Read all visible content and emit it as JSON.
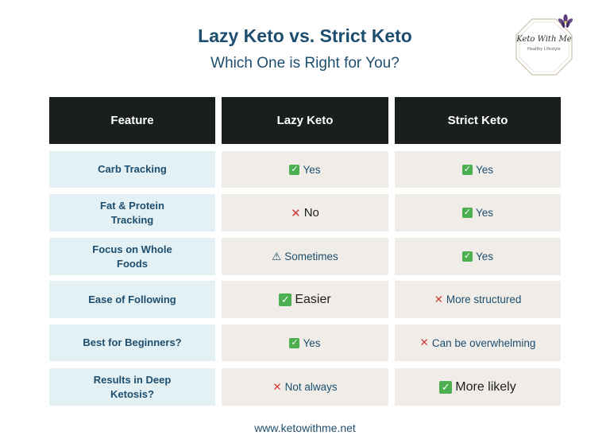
{
  "header": {
    "title": "Lazy Keto vs. Strict Keto",
    "subtitle": "Which One is Right for You?"
  },
  "logo": {
    "name": "Keto With Me",
    "tagline": "Healthy Lifestyle",
    "icon": "flower-icon"
  },
  "table": {
    "columns": [
      "Feature",
      "Lazy Keto",
      "Strict Keto"
    ],
    "rows": [
      {
        "feature": "Carb Tracking",
        "lazy": {
          "icon": "check",
          "text": "Yes"
        },
        "strict": {
          "icon": "check",
          "text": "Yes"
        }
      },
      {
        "feature": "Fat & Protein Tracking",
        "lazy": {
          "icon": "cross",
          "text": "No"
        },
        "strict": {
          "icon": "check",
          "text": "Yes"
        }
      },
      {
        "feature": "Focus on Whole Foods",
        "lazy": {
          "icon": "warning",
          "text": "Sometimes"
        },
        "strict": {
          "icon": "check",
          "text": "Yes"
        }
      },
      {
        "feature": "Ease of Following",
        "lazy": {
          "icon": "check",
          "text": "Easier"
        },
        "strict": {
          "icon": "cross",
          "text": "More structured"
        }
      },
      {
        "feature": "Best for Beginners?",
        "lazy": {
          "icon": "check",
          "text": "Yes"
        },
        "strict": {
          "icon": "cross",
          "text": "Can be overwhelming"
        }
      },
      {
        "feature": "Results in Deep Ketosis?",
        "lazy": {
          "icon": "cross",
          "text": "Not always"
        },
        "strict": {
          "icon": "check",
          "text": "More likely"
        }
      }
    ]
  },
  "colors": {
    "header_bg": "#1b1e1e",
    "feature_bg": "#e3f1f4",
    "value_bg": "#f0ede9",
    "text": "#1d4e6f",
    "check": "#4caf50",
    "cross": "#d23a3a"
  },
  "footer": {
    "url": "www.ketowithme.net"
  }
}
